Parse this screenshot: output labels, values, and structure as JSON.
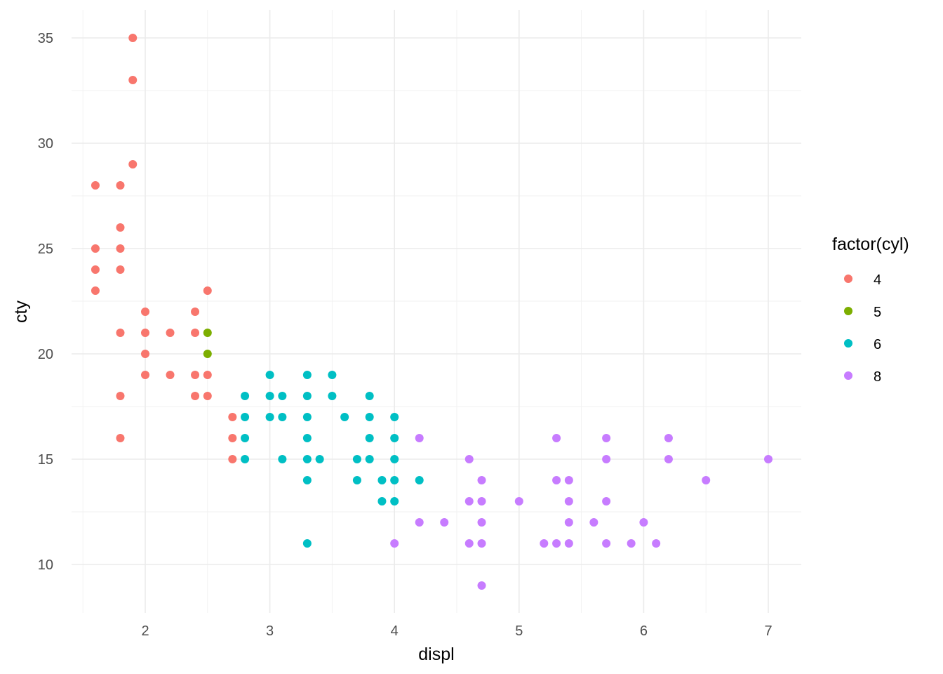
{
  "chart_data": {
    "type": "scatter",
    "title": "",
    "xlabel": "displ",
    "ylabel": "cty",
    "xlim": [
      1.6,
      7.0
    ],
    "ylim": [
      9,
      35
    ],
    "x_ticks": [
      2,
      3,
      4,
      5,
      6,
      7
    ],
    "y_ticks": [
      10,
      15,
      20,
      25,
      30,
      35
    ],
    "grid": true,
    "legend": {
      "title": "factor(cyl)",
      "position": "right",
      "items": [
        {
          "label": "4",
          "color": "#F8766D"
        },
        {
          "label": "5",
          "color": "#7CAE00"
        },
        {
          "label": "6",
          "color": "#00BFC4"
        },
        {
          "label": "8",
          "color": "#C77CFF"
        }
      ]
    },
    "series": [
      {
        "name": "4",
        "color": "#F8766D",
        "points": [
          [
            1.9,
            35
          ],
          [
            1.9,
            33
          ],
          [
            1.9,
            29
          ],
          [
            1.6,
            28
          ],
          [
            1.8,
            28
          ],
          [
            1.8,
            26
          ],
          [
            1.6,
            25
          ],
          [
            1.8,
            25
          ],
          [
            1.6,
            24
          ],
          [
            1.8,
            24
          ],
          [
            1.6,
            23
          ],
          [
            2.5,
            23
          ],
          [
            2.0,
            22
          ],
          [
            2.4,
            22
          ],
          [
            1.8,
            21
          ],
          [
            2.0,
            21
          ],
          [
            2.2,
            21
          ],
          [
            2.4,
            21
          ],
          [
            2.0,
            20
          ],
          [
            2.0,
            19
          ],
          [
            2.2,
            19
          ],
          [
            2.4,
            19
          ],
          [
            2.5,
            19
          ],
          [
            1.8,
            18
          ],
          [
            2.4,
            18
          ],
          [
            2.5,
            18
          ],
          [
            2.7,
            17
          ],
          [
            1.8,
            16
          ],
          [
            2.7,
            16
          ],
          [
            2.7,
            15
          ]
        ]
      },
      {
        "name": "5",
        "color": "#7CAE00",
        "points": [
          [
            2.5,
            21
          ],
          [
            2.5,
            20
          ]
        ]
      },
      {
        "name": "6",
        "color": "#00BFC4",
        "points": [
          [
            3.0,
            19
          ],
          [
            3.3,
            19
          ],
          [
            3.5,
            19
          ],
          [
            2.8,
            18
          ],
          [
            3.0,
            18
          ],
          [
            3.1,
            18
          ],
          [
            3.3,
            18
          ],
          [
            3.5,
            18
          ],
          [
            3.8,
            18
          ],
          [
            2.8,
            17
          ],
          [
            3.0,
            17
          ],
          [
            3.1,
            17
          ],
          [
            3.3,
            17
          ],
          [
            3.6,
            17
          ],
          [
            3.8,
            17
          ],
          [
            4.0,
            17
          ],
          [
            2.8,
            16
          ],
          [
            3.3,
            16
          ],
          [
            3.8,
            16
          ],
          [
            4.0,
            16
          ],
          [
            2.8,
            15
          ],
          [
            3.1,
            15
          ],
          [
            3.3,
            15
          ],
          [
            3.4,
            15
          ],
          [
            3.7,
            15
          ],
          [
            3.8,
            15
          ],
          [
            4.0,
            15
          ],
          [
            3.3,
            14
          ],
          [
            3.7,
            14
          ],
          [
            3.9,
            14
          ],
          [
            4.0,
            14
          ],
          [
            4.2,
            14
          ],
          [
            3.9,
            13
          ],
          [
            4.0,
            13
          ],
          [
            3.3,
            11
          ]
        ]
      },
      {
        "name": "8",
        "color": "#C77CFF",
        "points": [
          [
            4.2,
            16
          ],
          [
            5.3,
            16
          ],
          [
            5.7,
            16
          ],
          [
            6.2,
            16
          ],
          [
            4.6,
            15
          ],
          [
            5.7,
            15
          ],
          [
            6.2,
            15
          ],
          [
            7.0,
            15
          ],
          [
            4.7,
            14
          ],
          [
            5.3,
            14
          ],
          [
            5.4,
            14
          ],
          [
            6.5,
            14
          ],
          [
            4.6,
            13
          ],
          [
            4.7,
            13
          ],
          [
            5.0,
            13
          ],
          [
            5.4,
            13
          ],
          [
            5.7,
            13
          ],
          [
            4.2,
            12
          ],
          [
            4.4,
            12
          ],
          [
            4.7,
            12
          ],
          [
            5.4,
            12
          ],
          [
            5.6,
            12
          ],
          [
            6.0,
            12
          ],
          [
            4.0,
            11
          ],
          [
            4.6,
            11
          ],
          [
            4.7,
            11
          ],
          [
            5.2,
            11
          ],
          [
            5.3,
            11
          ],
          [
            5.4,
            11
          ],
          [
            5.7,
            11
          ],
          [
            5.9,
            11
          ],
          [
            6.1,
            11
          ],
          [
            4.7,
            9
          ]
        ]
      }
    ]
  }
}
